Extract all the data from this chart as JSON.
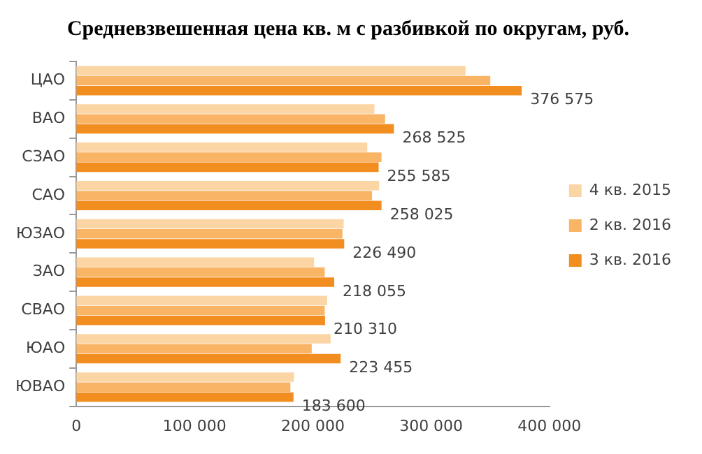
{
  "chart_data": {
    "type": "bar",
    "orientation": "horizontal",
    "title": "Средневзвешенная цена кв. м с разбивкой по округам, руб.",
    "categories": [
      "ЦАО",
      "ВАО",
      "СЗАО",
      "САО",
      "ЮЗАО",
      "ЗАО",
      "СВАО",
      "ЮАО",
      "ЮВАО"
    ],
    "series": [
      {
        "name": "4 кв. 2015",
        "color": "#fcd5a5",
        "values": [
          329000,
          252000,
          246000,
          256000,
          226000,
          201000,
          212000,
          215000,
          184000
        ]
      },
      {
        "name": "2 кв. 2016",
        "color": "#f9b466",
        "values": [
          350000,
          261000,
          258000,
          250000,
          225000,
          210000,
          210000,
          199000,
          181000
        ]
      },
      {
        "name": "3 кв. 2016",
        "color": "#f28e20",
        "values": [
          376575,
          268525,
          255585,
          258025,
          226490,
          218055,
          210310,
          223455,
          183600
        ],
        "value_labels": [
          "376 575",
          "268 525",
          "255 585",
          "258 025",
          "226 490",
          "218 055",
          "210 310",
          "223 455",
          "183 600"
        ]
      }
    ],
    "xlim": [
      0,
      400000
    ],
    "xticks": [
      {
        "value": 0,
        "label": "0"
      },
      {
        "value": 100000,
        "label": "100 000"
      },
      {
        "value": 200000,
        "label": "200 000"
      },
      {
        "value": 300000,
        "label": "300 000"
      },
      {
        "value": 400000,
        "label": "400 000"
      }
    ],
    "grid": false,
    "legend": "right"
  }
}
